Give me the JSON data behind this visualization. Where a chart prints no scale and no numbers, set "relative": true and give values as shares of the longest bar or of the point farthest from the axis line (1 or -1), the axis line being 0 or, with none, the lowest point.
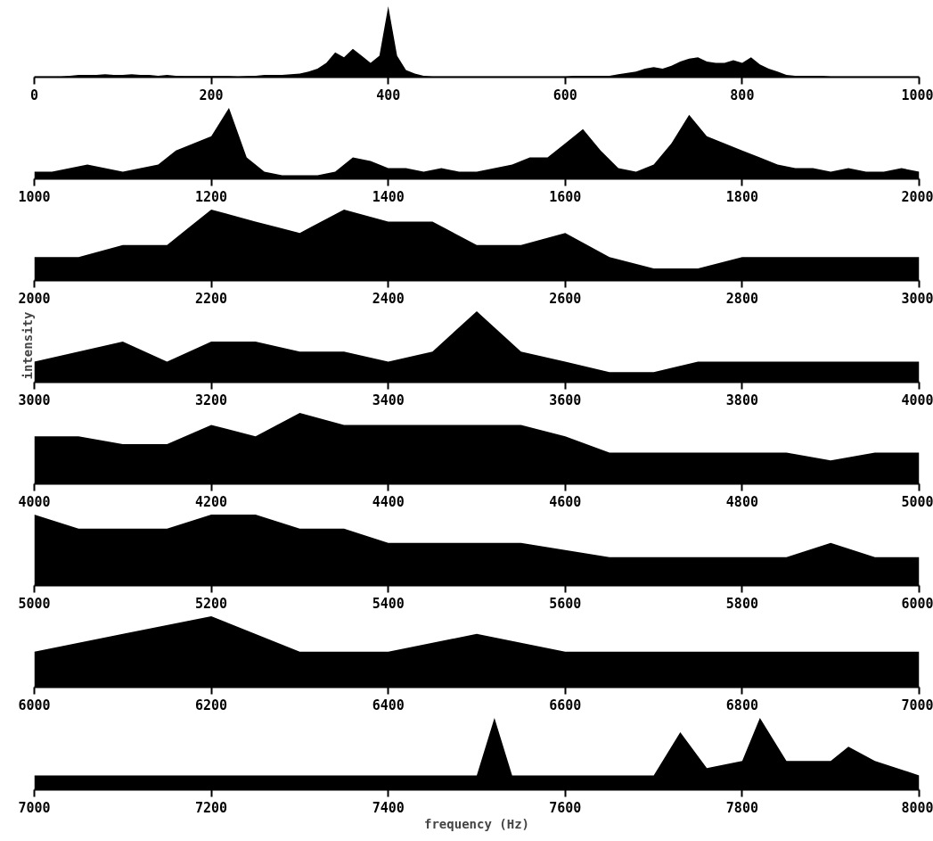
{
  "chart_data": [
    {
      "type": "area",
      "relative": true,
      "color": "#000000",
      "xlim": [
        0,
        1000
      ],
      "xticks": [
        0,
        200,
        400,
        600,
        800,
        1000
      ],
      "x": [
        0,
        10,
        20,
        30,
        40,
        50,
        60,
        70,
        80,
        90,
        100,
        110,
        120,
        130,
        140,
        150,
        160,
        170,
        180,
        190,
        200,
        210,
        220,
        230,
        240,
        250,
        260,
        270,
        280,
        290,
        300,
        310,
        320,
        330,
        340,
        350,
        360,
        370,
        380,
        390,
        400,
        410,
        420,
        430,
        440,
        450,
        460,
        470,
        480,
        490,
        500,
        510,
        520,
        530,
        540,
        550,
        560,
        570,
        580,
        590,
        600,
        610,
        620,
        630,
        640,
        650,
        660,
        670,
        680,
        690,
        700,
        710,
        720,
        730,
        740,
        750,
        760,
        770,
        780,
        790,
        800,
        810,
        820,
        830,
        840,
        850,
        860,
        870,
        880,
        890,
        900,
        910,
        920,
        930,
        940,
        950,
        960,
        970,
        980,
        990,
        1000
      ],
      "values": [
        0.01,
        0.01,
        0.01,
        0.01,
        0.02,
        0.03,
        0.03,
        0.03,
        0.04,
        0.03,
        0.03,
        0.04,
        0.03,
        0.03,
        0.02,
        0.03,
        0.02,
        0.015,
        0.015,
        0.015,
        0.015,
        0.015,
        0.015,
        0.01,
        0.015,
        0.02,
        0.03,
        0.03,
        0.03,
        0.04,
        0.05,
        0.08,
        0.12,
        0.2,
        0.35,
        0.28,
        0.4,
        0.3,
        0.2,
        0.3,
        1.0,
        0.3,
        0.1,
        0.05,
        0.02,
        0.01,
        0.01,
        0.01,
        0.01,
        0.01,
        0.01,
        0.01,
        0.01,
        0.01,
        0.01,
        0.01,
        0.01,
        0.01,
        0.01,
        0.01,
        0.01,
        0.02,
        0.02,
        0.02,
        0.02,
        0.02,
        0.04,
        0.06,
        0.08,
        0.12,
        0.14,
        0.12,
        0.16,
        0.22,
        0.26,
        0.28,
        0.22,
        0.2,
        0.2,
        0.24,
        0.2,
        0.28,
        0.18,
        0.12,
        0.08,
        0.03,
        0.02,
        0.02,
        0.02,
        0.02,
        0.01,
        0.01,
        0.01,
        0.01,
        0.01,
        0.01,
        0.01,
        0.01,
        0.01,
        0.01,
        0.01
      ]
    },
    {
      "type": "area",
      "relative": true,
      "color": "#000000",
      "xlim": [
        1000,
        2000
      ],
      "xticks": [
        1000,
        1200,
        1400,
        1600,
        1800,
        2000
      ],
      "x": [
        1000,
        1020,
        1040,
        1060,
        1080,
        1100,
        1120,
        1140,
        1160,
        1180,
        1200,
        1220,
        1240,
        1260,
        1280,
        1300,
        1320,
        1340,
        1360,
        1380,
        1400,
        1420,
        1440,
        1460,
        1480,
        1500,
        1520,
        1540,
        1560,
        1580,
        1600,
        1620,
        1640,
        1660,
        1680,
        1700,
        1720,
        1740,
        1760,
        1780,
        1800,
        1820,
        1840,
        1860,
        1880,
        1900,
        1920,
        1940,
        1960,
        1980,
        2000
      ],
      "values": [
        0.1,
        0.1,
        0.15,
        0.2,
        0.15,
        0.1,
        0.15,
        0.2,
        0.4,
        0.5,
        0.6,
        1,
        0.3,
        0.1,
        0.05,
        0.05,
        0.05,
        0.1,
        0.3,
        0.25,
        0.15,
        0.15,
        0.1,
        0.15,
        0.1,
        0.1,
        0.15,
        0.2,
        0.3,
        0.3,
        0.5,
        0.7,
        0.4,
        0.15,
        0.1,
        0.2,
        0.5,
        0.9,
        0.6,
        0.5,
        0.4,
        0.3,
        0.2,
        0.15,
        0.15,
        0.1,
        0.15,
        0.1,
        0.1,
        0.15,
        0.1
      ]
    },
    {
      "type": "area",
      "relative": true,
      "color": "#000000",
      "xlim": [
        2000,
        3000
      ],
      "xticks": [
        2000,
        2200,
        2400,
        2600,
        2800,
        3000
      ],
      "x": [
        2000,
        2050,
        2100,
        2150,
        2200,
        2250,
        2300,
        2350,
        2400,
        2450,
        2500,
        2550,
        2600,
        2650,
        2700,
        2750,
        2800,
        2850,
        2900,
        2950,
        3000
      ],
      "values": [
        0.33,
        0.33,
        0.5,
        0.5,
        1,
        0.83,
        0.67,
        1,
        0.83,
        0.83,
        0.5,
        0.5,
        0.67,
        0.33,
        0.17,
        0.17,
        0.33,
        0.33,
        0.33,
        0.33,
        0.33
      ]
    },
    {
      "type": "area",
      "relative": true,
      "color": "#000000",
      "ylabel": "intensity",
      "xlim": [
        3000,
        4000
      ],
      "xticks": [
        3000,
        3200,
        3400,
        3600,
        3800,
        4000
      ],
      "x": [
        3000,
        3050,
        3100,
        3150,
        3200,
        3250,
        3300,
        3350,
        3400,
        3450,
        3500,
        3550,
        3600,
        3650,
        3700,
        3750,
        3800,
        3850,
        3900,
        3950,
        4000
      ],
      "values": [
        0.29,
        0.43,
        0.57,
        0.29,
        0.57,
        0.57,
        0.43,
        0.43,
        0.29,
        0.43,
        1,
        0.43,
        0.29,
        0.14,
        0.14,
        0.29,
        0.29,
        0.29,
        0.29,
        0.29,
        0.29
      ]
    },
    {
      "type": "area",
      "relative": true,
      "color": "#000000",
      "xlim": [
        4000,
        5000
      ],
      "xticks": [
        4000,
        4200,
        4400,
        4600,
        4800,
        5000
      ],
      "x": [
        4000,
        4050,
        4100,
        4150,
        4200,
        4250,
        4300,
        4350,
        4400,
        4450,
        4500,
        4550,
        4600,
        4650,
        4700,
        4750,
        4800,
        4850,
        4900,
        4950,
        5000
      ],
      "values": [
        0.67,
        0.67,
        0.56,
        0.56,
        0.83,
        0.67,
        1,
        0.83,
        0.83,
        0.83,
        0.83,
        0.83,
        0.67,
        0.44,
        0.44,
        0.44,
        0.44,
        0.44,
        0.33,
        0.44,
        0.44
      ]
    },
    {
      "type": "area",
      "relative": true,
      "color": "#000000",
      "xlim": [
        5000,
        6000
      ],
      "xticks": [
        5000,
        5200,
        5400,
        5600,
        5800,
        6000
      ],
      "x": [
        5000,
        5050,
        5100,
        5150,
        5200,
        5250,
        5300,
        5350,
        5400,
        5450,
        5500,
        5550,
        5600,
        5650,
        5700,
        5750,
        5800,
        5850,
        5900,
        5950,
        6000
      ],
      "values": [
        1,
        0.8,
        0.8,
        0.8,
        1,
        1,
        0.8,
        0.8,
        0.6,
        0.6,
        0.6,
        0.6,
        0.5,
        0.4,
        0.4,
        0.4,
        0.4,
        0.4,
        0.6,
        0.4,
        0.4
      ]
    },
    {
      "type": "area",
      "relative": true,
      "color": "#000000",
      "xlim": [
        6000,
        7000
      ],
      "xticks": [
        6000,
        6200,
        6400,
        6600,
        6800,
        7000
      ],
      "x": [
        6000,
        6100,
        6200,
        6300,
        6400,
        6500,
        6600,
        6700,
        6800,
        6900,
        7000
      ],
      "values": [
        0.5,
        0.75,
        1,
        0.5,
        0.5,
        0.75,
        0.5,
        0.5,
        0.5,
        0.5,
        0.5
      ]
    },
    {
      "type": "area",
      "relative": true,
      "color": "#000000",
      "xlabel": "frequency (Hz)",
      "xlim": [
        7000,
        8000
      ],
      "xticks": [
        7000,
        7200,
        7400,
        7600,
        7800,
        8000
      ],
      "x": [
        7000,
        7100,
        7200,
        7300,
        7400,
        7500,
        7520,
        7540,
        7600,
        7700,
        7730,
        7760,
        7800,
        7820,
        7850,
        7900,
        7920,
        7950,
        8000
      ],
      "values": [
        0.2,
        0.2,
        0.2,
        0.2,
        0.2,
        0.2,
        1,
        0.2,
        0.2,
        0.2,
        0.8,
        0.3,
        0.4,
        1,
        0.4,
        0.4,
        0.6,
        0.4,
        0.2
      ]
    }
  ]
}
